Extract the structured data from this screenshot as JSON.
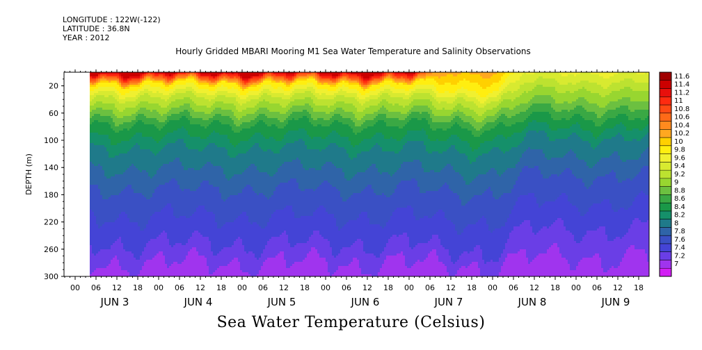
{
  "header": {
    "longitude": "LONGITUDE : 122W(-122)",
    "latitude": "LATITUDE : 36.8N",
    "year": "YEAR : 2012"
  },
  "chart_data": {
    "type": "heatmap",
    "title": "Hourly Gridded MBARI Mooring M1 Sea Water Temperature and Salinity Observations",
    "bottom_title": "Sea Water Temperature (Celsius)",
    "ylabel": "DEPTH (m)",
    "xlabel": "",
    "y_axis": {
      "range": [
        0,
        300
      ],
      "inverted": true,
      "ticks": [
        20,
        60,
        100,
        140,
        180,
        220,
        260,
        300
      ]
    },
    "x_axis": {
      "hour_labels": [
        "00",
        "06",
        "12",
        "18",
        "00",
        "06",
        "12",
        "18",
        "00",
        "06",
        "12",
        "18",
        "00",
        "06",
        "12",
        "18",
        "00",
        "06",
        "12",
        "18",
        "00",
        "06",
        "12",
        "18",
        "00",
        "06",
        "12",
        "18"
      ],
      "day_labels": [
        "JUN 3",
        "JUN 4",
        "JUN 5",
        "JUN 6",
        "JUN 7",
        "JUN 8",
        "JUN 9"
      ]
    },
    "colorbar": {
      "levels": [
        "11.6",
        "11.4",
        "11.2",
        "11",
        "10.8",
        "10.6",
        "10.4",
        "10.2",
        "10",
        "9.8",
        "9.6",
        "9.4",
        "9.2",
        "9",
        "8.8",
        "8.6",
        "8.4",
        "8.2",
        "8",
        "7.8",
        "7.6",
        "7.4",
        "7.2",
        "7"
      ],
      "colors": [
        "#a00000",
        "#cc0000",
        "#e8100c",
        "#ff2b10",
        "#ff4a14",
        "#ff6a18",
        "#ff8a1e",
        "#ffa820",
        "#ffd000",
        "#ffee10",
        "#f0f030",
        "#d8ea30",
        "#bce230",
        "#98d630",
        "#6cc040",
        "#3aa844",
        "#1a9848",
        "#15906a",
        "#1f7a8a",
        "#2f64a8",
        "#3a50c4",
        "#4444d6",
        "#6a3ee6",
        "#a034ee",
        "#d21ef4"
      ]
    },
    "depth_profile_regimes": [
      {
        "period": "JUN 3 06 - JUN 6 06",
        "surface_temp": 11.4,
        "isotherms_depth": {
          "10.0": 15,
          "9.4": 35,
          "9.0": 55,
          "8.6": 75,
          "8.2": 110,
          "7.8": 170,
          "7.4": 250
        }
      },
      {
        "period": "JUN 6 06 - JUN 8 00",
        "surface_temp": 10.2,
        "isotherms_depth": {
          "9.8": 25,
          "9.4": 40,
          "9.0": 60,
          "8.6": 80,
          "8.2": 115,
          "7.8": 175,
          "7.4": 260
        }
      },
      {
        "period": "JUN 8 00 - JUN 9 21",
        "surface_temp": 9.6,
        "isotherms_depth": {
          "9.2": 25,
          "9.0": 40,
          "8.6": 65,
          "8.2": 95,
          "7.8": 150,
          "7.4": 230
        }
      }
    ]
  }
}
